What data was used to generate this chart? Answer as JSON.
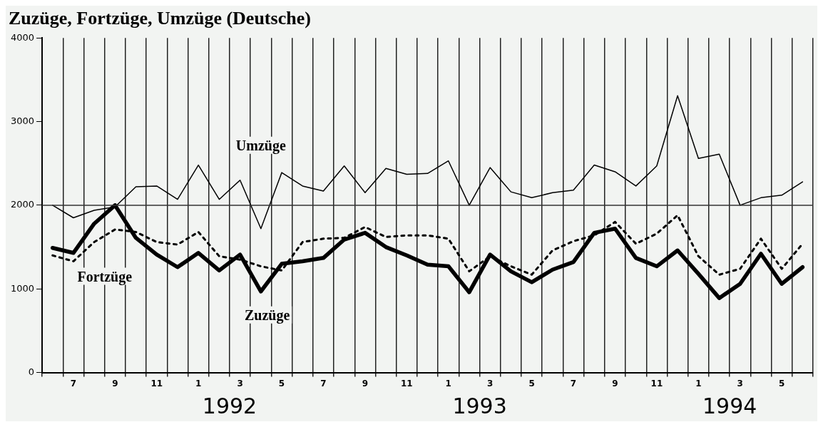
{
  "chart_data": {
    "type": "line",
    "title": "Zuzüge, Fortzüge, Umzüge (Deutsche)",
    "categories": [
      null,
      "7",
      null,
      "9",
      null,
      "11",
      null,
      "1",
      null,
      "3",
      null,
      "5",
      null,
      "7",
      null,
      "9",
      null,
      "11",
      null,
      "1",
      null,
      "3",
      null,
      "5",
      null,
      "7",
      null,
      "9",
      null,
      "11",
      null,
      "1",
      null,
      "3",
      null,
      "5",
      null
    ],
    "series": [
      {
        "name": "Umzüge",
        "color": "#000000",
        "line_style": "solid",
        "values": [
          2000,
          1850,
          1940,
          1980,
          2220,
          2230,
          2070,
          2480,
          2070,
          2300,
          1720,
          2390,
          2230,
          2170,
          2470,
          2150,
          2440,
          2370,
          2380,
          2530,
          2000,
          2450,
          2160,
          2090,
          2150,
          2180,
          2480,
          2400,
          2230,
          2470,
          3310,
          2560,
          2610,
          2000,
          2090,
          2120,
          2280
        ]
      },
      {
        "name": "Fortzüge",
        "color": "#000000",
        "line_style": "dotted",
        "values": [
          1400,
          1330,
          1560,
          1710,
          1680,
          1560,
          1530,
          1680,
          1390,
          1350,
          1270,
          1220,
          1560,
          1600,
          1610,
          1740,
          1620,
          1640,
          1640,
          1600,
          1210,
          1390,
          1270,
          1170,
          1460,
          1570,
          1640,
          1800,
          1540,
          1660,
          1880,
          1390,
          1170,
          1240,
          1600,
          1240,
          1540
        ]
      },
      {
        "name": "Zuzüge",
        "color": "#000000",
        "line_style": "solid",
        "values": [
          1490,
          1430,
          1780,
          2000,
          1610,
          1410,
          1260,
          1430,
          1220,
          1410,
          970,
          1300,
          1330,
          1370,
          1590,
          1670,
          1500,
          1400,
          1290,
          1270,
          960,
          1410,
          1210,
          1080,
          1230,
          1320,
          1670,
          1720,
          1370,
          1270,
          1460,
          1180,
          890,
          1060,
          1420,
          1060,
          1260
        ]
      }
    ],
    "ylim": [
      0,
      4000
    ],
    "yticks": [
      0,
      1000,
      2000,
      3000,
      4000
    ],
    "ref_lines": [
      {
        "axis": "y",
        "value": 2000,
        "color": "#333333"
      }
    ],
    "annotations": [
      "1992",
      "1993",
      "1994"
    ],
    "grid": "x",
    "legend": false,
    "marker": "none"
  }
}
